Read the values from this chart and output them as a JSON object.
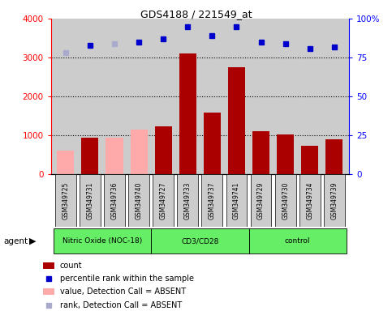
{
  "title": "GDS4188 / 221549_at",
  "samples": [
    "GSM349725",
    "GSM349731",
    "GSM349736",
    "GSM349740",
    "GSM349727",
    "GSM349733",
    "GSM349737",
    "GSM349741",
    "GSM349729",
    "GSM349730",
    "GSM349734",
    "GSM349739"
  ],
  "groups": [
    {
      "label": "Nitric Oxide (NOC-18)",
      "start": 0,
      "end": 4
    },
    {
      "label": "CD3/CD28",
      "start": 4,
      "end": 8
    },
    {
      "label": "control",
      "start": 8,
      "end": 12
    }
  ],
  "counts": [
    600,
    930,
    930,
    1150,
    1240,
    3100,
    1580,
    2760,
    1100,
    1020,
    730,
    890
  ],
  "absent_flags": [
    true,
    false,
    true,
    true,
    false,
    false,
    false,
    false,
    false,
    false,
    false,
    false
  ],
  "percentile_ranks": [
    78,
    83,
    84,
    85,
    87,
    95,
    89,
    95,
    85,
    84,
    81,
    82
  ],
  "absent_rank_flags": [
    true,
    false,
    true,
    false,
    false,
    false,
    false,
    false,
    false,
    false,
    false,
    false
  ],
  "ylim_left": [
    0,
    4000
  ],
  "ylim_right": [
    0,
    100
  ],
  "yticks_left": [
    0,
    1000,
    2000,
    3000,
    4000
  ],
  "yticks_right": [
    0,
    25,
    50,
    75,
    100
  ],
  "bar_color_present": "#aa0000",
  "bar_color_absent": "#ffaaaa",
  "dot_color_present": "#0000cc",
  "dot_color_absent": "#aaaacc",
  "plot_bg_color": "#cccccc",
  "background_color": "#ffffff",
  "group_color": "#66ee66",
  "sample_bg_color": "#cccccc",
  "bar_width": 0.7,
  "legend_items": [
    {
      "label": "count",
      "color": "#aa0000",
      "type": "bar"
    },
    {
      "label": "percentile rank within the sample",
      "color": "#0000cc",
      "type": "dot"
    },
    {
      "label": "value, Detection Call = ABSENT",
      "color": "#ffaaaa",
      "type": "bar"
    },
    {
      "label": "rank, Detection Call = ABSENT",
      "color": "#aaaacc",
      "type": "dot"
    }
  ]
}
